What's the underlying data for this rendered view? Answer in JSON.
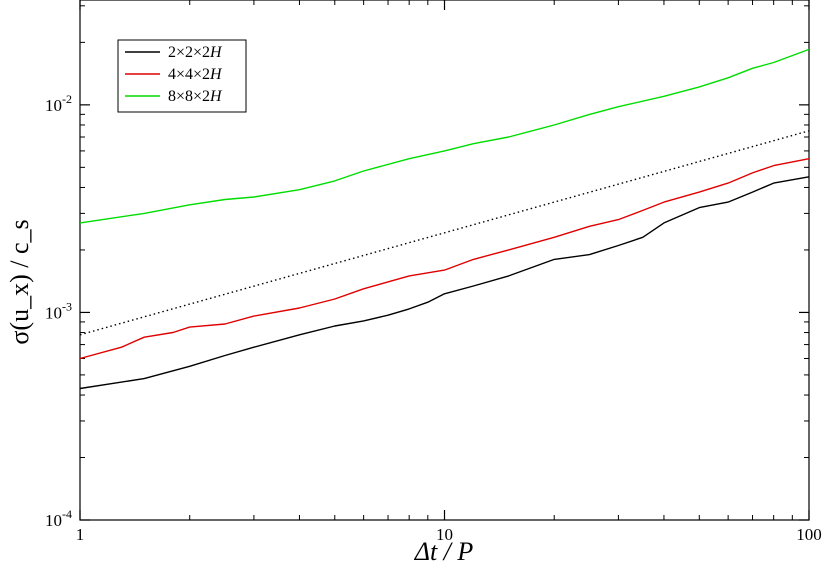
{
  "chart_data": {
    "type": "line",
    "title": "",
    "xlabel": "Δt / P",
    "ylabel": "σ(u_x) / c_s",
    "xscale": "log",
    "yscale": "log",
    "xlim": [
      1,
      100
    ],
    "ylim": [
      0.0001,
      0.032
    ],
    "grid": false,
    "legend_position": "top-left",
    "x_ticks": [
      {
        "value": 1,
        "label": "1"
      },
      {
        "value": 10,
        "label": "10"
      },
      {
        "value": 100,
        "label": "100"
      }
    ],
    "y_ticks": [
      {
        "value": 0.0001,
        "base": "10",
        "exp": "-4"
      },
      {
        "value": 0.001,
        "base": "10",
        "exp": "-3"
      },
      {
        "value": 0.01,
        "base": "10",
        "exp": "-2"
      }
    ],
    "series": [
      {
        "name": "2×2×2H",
        "color": "#000000",
        "style": "solid",
        "points": [
          [
            1,
            0.00043
          ],
          [
            1.5,
            0.00048
          ],
          [
            2,
            0.00055
          ],
          [
            2.5,
            0.00062
          ],
          [
            3,
            0.00068
          ],
          [
            4,
            0.00078
          ],
          [
            5,
            0.00086
          ],
          [
            6,
            0.00091
          ],
          [
            7,
            0.00097
          ],
          [
            8,
            0.00104
          ],
          [
            9,
            0.00112
          ],
          [
            10,
            0.00123
          ],
          [
            12,
            0.00134
          ],
          [
            15,
            0.0015
          ],
          [
            20,
            0.0018
          ],
          [
            25,
            0.0019
          ],
          [
            30,
            0.0021
          ],
          [
            35,
            0.0023
          ],
          [
            40,
            0.0027
          ],
          [
            50,
            0.0032
          ],
          [
            60,
            0.0034
          ],
          [
            70,
            0.0038
          ],
          [
            80,
            0.0042
          ],
          [
            100,
            0.0045
          ]
        ]
      },
      {
        "name": "4×4×2H",
        "color": "#e00000",
        "style": "solid",
        "points": [
          [
            1,
            0.0006
          ],
          [
            1.3,
            0.00068
          ],
          [
            1.5,
            0.00076
          ],
          [
            1.8,
            0.0008
          ],
          [
            2,
            0.00085
          ],
          [
            2.5,
            0.00088
          ],
          [
            3,
            0.00096
          ],
          [
            4,
            0.00105
          ],
          [
            5,
            0.00116
          ],
          [
            6,
            0.0013
          ],
          [
            8,
            0.0015
          ],
          [
            10,
            0.0016
          ],
          [
            12,
            0.0018
          ],
          [
            15,
            0.002
          ],
          [
            20,
            0.0023
          ],
          [
            25,
            0.0026
          ],
          [
            30,
            0.0028
          ],
          [
            35,
            0.0031
          ],
          [
            40,
            0.0034
          ],
          [
            50,
            0.0038
          ],
          [
            60,
            0.0042
          ],
          [
            70,
            0.0047
          ],
          [
            80,
            0.0051
          ],
          [
            100,
            0.0055
          ]
        ]
      },
      {
        "name": "8×8×2H",
        "color": "#00dd00",
        "style": "solid",
        "points": [
          [
            1,
            0.0027
          ],
          [
            1.5,
            0.003
          ],
          [
            2,
            0.0033
          ],
          [
            2.5,
            0.0035
          ],
          [
            3,
            0.0036
          ],
          [
            4,
            0.0039
          ],
          [
            5,
            0.0043
          ],
          [
            6,
            0.0048
          ],
          [
            8,
            0.0055
          ],
          [
            10,
            0.006
          ],
          [
            12,
            0.0065
          ],
          [
            15,
            0.007
          ],
          [
            20,
            0.008
          ],
          [
            25,
            0.009
          ],
          [
            30,
            0.0098
          ],
          [
            40,
            0.011
          ],
          [
            50,
            0.0122
          ],
          [
            60,
            0.0135
          ],
          [
            70,
            0.015
          ],
          [
            80,
            0.016
          ],
          [
            100,
            0.0185
          ]
        ]
      },
      {
        "name": "",
        "color": "#000000",
        "style": "dotted",
        "points": [
          [
            1,
            0.00078
          ],
          [
            100,
            0.0075
          ]
        ]
      }
    ]
  }
}
